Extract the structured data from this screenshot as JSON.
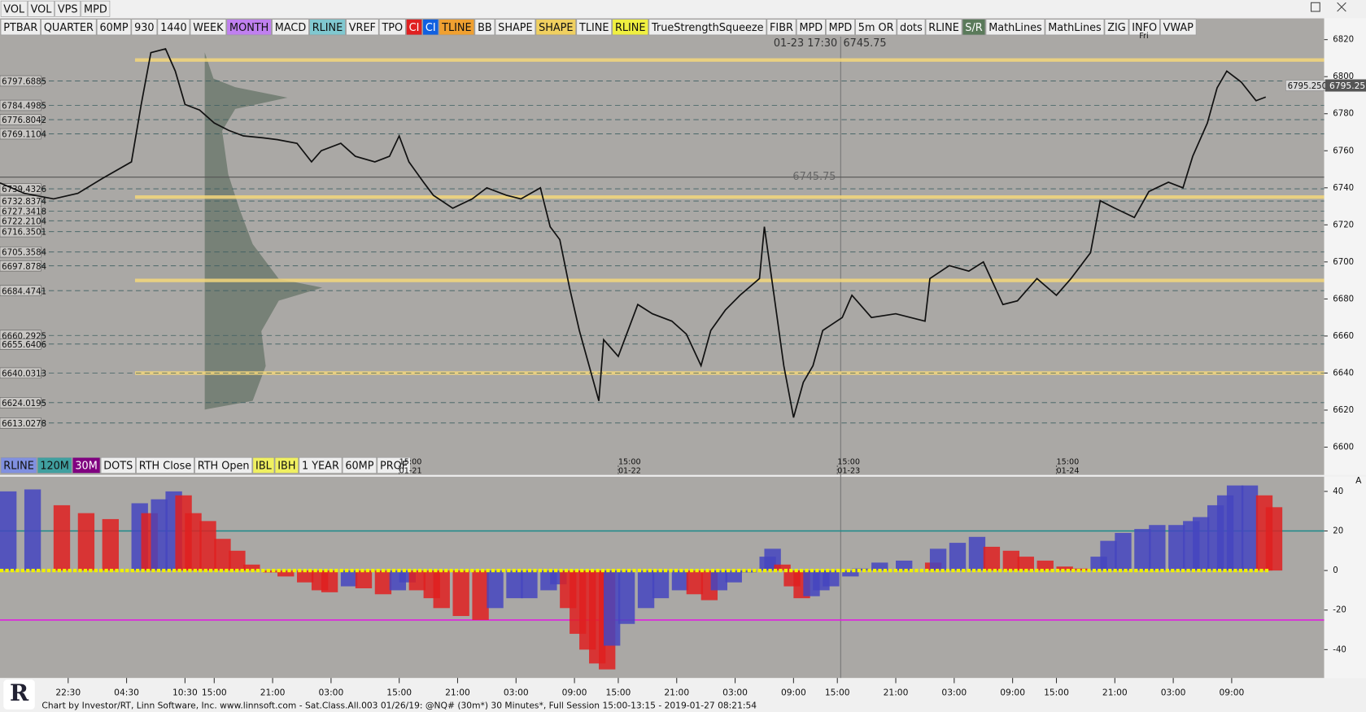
{
  "top_buttons": [
    "VOL",
    "VOL",
    "VPS",
    "MPD"
  ],
  "toolbar": [
    {
      "label": "PTBAR",
      "color": "#eeeeee"
    },
    {
      "label": "QUARTER",
      "color": "#eeeeee"
    },
    {
      "label": "60MP",
      "color": "#eeeeee"
    },
    {
      "label": "930",
      "color": "#eeeeee"
    },
    {
      "label": "1440",
      "color": "#eeeeee"
    },
    {
      "label": "WEEK",
      "color": "#eeeeee"
    },
    {
      "label": "MONTH",
      "color": "#c080f0"
    },
    {
      "label": "MACD",
      "color": "#eeeeee"
    },
    {
      "label": "RLINE",
      "color": "#80c8d0"
    },
    {
      "label": "VREF",
      "color": "#eeeeee"
    },
    {
      "label": "TPO",
      "color": "#eeeeee"
    },
    {
      "label": "CI",
      "color": "#e02020"
    },
    {
      "label": "CI",
      "color": "#1060e0"
    },
    {
      "label": "TLINE",
      "color": "#f0a030"
    },
    {
      "label": "BB",
      "color": "#eeeeee"
    },
    {
      "label": "SHAPE",
      "color": "#eeeeee"
    },
    {
      "label": "SHAPE",
      "color": "#f0d060"
    },
    {
      "label": "TLINE",
      "color": "#eeeeee"
    },
    {
      "label": "RLINE",
      "color": "#f0f040"
    },
    {
      "label": "TrueStrengthSqueeze",
      "color": "#eeeeee"
    },
    {
      "label": "FIBR",
      "color": "#eeeeee"
    },
    {
      "label": "MPD",
      "color": "#eeeeee"
    },
    {
      "label": "MPD",
      "color": "#eeeeee"
    },
    {
      "label": "5m OR",
      "color": "#eeeeee"
    },
    {
      "label": "dots",
      "color": "#eeeeee"
    },
    {
      "label": "RLINE",
      "color": "#eeeeee"
    },
    {
      "label": "S/R",
      "color": "#5a7a5a"
    },
    {
      "label": "MathLines",
      "color": "#eeeeee"
    },
    {
      "label": "MathLines",
      "color": "#eeeeee"
    },
    {
      "label": "ZIG",
      "color": "#eeeeee"
    },
    {
      "label": "INFO",
      "color": "#eeeeee"
    },
    {
      "label": "VWAP",
      "color": "#eeeeee"
    }
  ],
  "lower_toolbar": [
    {
      "label": "RLINE",
      "color": "#8090e0"
    },
    {
      "label": "120M",
      "color": "#40a0a0"
    },
    {
      "label": "30M",
      "color": "#800080"
    },
    {
      "label": "DOTS",
      "color": "#eeeeee"
    },
    {
      "label": "RTH Close",
      "color": "#eeeeee"
    },
    {
      "label": "RTH Open",
      "color": "#eeeeee"
    },
    {
      "label": "IBL",
      "color": "#f0f060"
    },
    {
      "label": "IBH",
      "color": "#f0f060"
    },
    {
      "label": "1 YEAR",
      "color": "#eeeeee"
    },
    {
      "label": "60MP",
      "color": "#eeeeee"
    },
    {
      "label": "PROF",
      "color": "#eeeeee"
    }
  ],
  "logo": "R",
  "footer": "Chart by Investor/RT, Linn Software, Inc. www.linnsoft.com - Sat.Class.All.003   01/26/19: @NQ# (30m*) 30 Minutes*, Full Session 15:00-13:15 - 2019-01-27 08:21:54",
  "chart_data": [
    {
      "type": "line",
      "color": "#111111",
      "x": [
        0,
        5,
        11,
        16,
        21,
        27,
        29,
        31,
        34,
        36,
        38,
        41,
        44,
        47,
        50,
        54,
        57,
        61,
        64,
        66,
        70,
        73,
        77,
        80,
        82,
        84,
        87,
        89,
        93,
        97,
        100,
        104,
        107,
        111,
        113,
        115,
        117,
        119,
        121,
        123,
        124,
        127,
        131,
        134,
        138,
        141,
        144,
        146,
        149,
        152,
        156,
        157,
        159,
        161,
        163,
        165,
        167,
        169,
        173,
        175,
        179,
        184,
        190,
        191,
        195,
        199,
        202,
        206,
        209,
        213,
        217,
        220,
        224,
        226,
        229,
        233,
        236,
        240,
        243,
        245,
        248,
        250,
        252,
        255,
        258,
        260
      ],
      "values": [
        6742.6,
        6737,
        6734,
        6737,
        6745,
        6754,
        6785,
        6813,
        6815,
        6803,
        6785,
        6782,
        6775,
        6771,
        6768,
        6767,
        6766,
        6764,
        6754,
        6760,
        6764,
        6757,
        6754,
        6757,
        6768,
        6754,
        6743,
        6736,
        6729,
        6734,
        6740,
        6736,
        6734,
        6740,
        6719,
        6712,
        6686,
        6663,
        6644,
        6625,
        6658,
        6649,
        6677,
        6672,
        6668,
        6661,
        6644,
        6663,
        6674,
        6682,
        6691,
        6719,
        6682,
        6644,
        6616,
        6635,
        6644,
        6663,
        6670,
        6682,
        6670,
        6672,
        6668,
        6691,
        6698,
        6695,
        6700,
        6677,
        6679,
        6691,
        6682,
        6691,
        6705,
        6733,
        6729,
        6724,
        6738,
        6743,
        6740,
        6757,
        6775,
        6794,
        6803,
        6797,
        6787,
        6789
      ],
      "xlim": [
        0,
        272
      ],
      "ylim": [
        6585,
        6831
      ],
      "yticks": [
        6600,
        6620,
        6640,
        6660,
        6680,
        6700,
        6720,
        6740,
        6760,
        6780,
        6800,
        6820
      ],
      "levels": [
        6797.6885,
        6784.4985,
        6776.8042,
        6769.1104,
        6739.4326,
        6732.8374,
        6727.3418,
        6722.2104,
        6716.3501,
        6705.3584,
        6697.8784,
        6684.4741,
        6660.2925,
        6655.6406,
        6640.0313,
        6624.0195,
        6613.0278
      ],
      "bands": [
        6809,
        6735,
        6690,
        6640
      ],
      "band_color": "#f5d77a",
      "session_ticks": [
        {
          "value": 82,
          "time": "15:00",
          "label": "01-21"
        },
        {
          "value": 127,
          "time": "15:00",
          "label": "01-22"
        },
        {
          "value": 172,
          "time": "15:00",
          "label": "01-23"
        },
        {
          "value": 217,
          "time": "15:00",
          "label": "01-24"
        },
        {
          "value": 234,
          "label": "Fri"
        }
      ],
      "crosshair": {
        "time": "01-23 17:30",
        "value": 6745.75
      },
      "last_price": {
        "value": 6795.25,
        "label": "6795.2500"
      }
    },
    {
      "type": "bar",
      "rising_color": "#4545c0",
      "falling_color": "#e02020",
      "x": [
        0,
        5,
        11,
        16,
        21,
        27,
        29,
        31,
        34,
        36,
        38,
        41,
        44,
        47,
        50,
        54,
        57,
        61,
        64,
        66,
        70,
        73,
        77,
        80,
        82,
        84,
        87,
        89,
        93,
        97,
        100,
        104,
        107,
        111,
        113,
        115,
        117,
        119,
        121,
        123,
        124,
        127,
        131,
        134,
        138,
        141,
        144,
        146,
        149,
        152,
        156,
        157,
        159,
        161,
        163,
        165,
        167,
        169,
        173,
        175,
        179,
        184,
        190,
        191,
        195,
        199,
        202,
        206,
        209,
        213,
        217,
        220,
        224,
        226,
        229,
        233,
        236,
        240,
        243,
        245,
        248,
        250,
        252,
        255,
        258,
        260
      ],
      "values": [
        40,
        41,
        33,
        29,
        26,
        34,
        29,
        36,
        40,
        38,
        29,
        25,
        16,
        10,
        3,
        -1,
        -3,
        -6,
        -10,
        -11,
        -8,
        -9,
        -12,
        -10,
        -6,
        -10,
        -14,
        -19,
        -23,
        -25,
        -19,
        -14,
        -14,
        -10,
        -7,
        -19,
        -32,
        -40,
        -47,
        -50,
        -38,
        -27,
        -19,
        -14,
        -10,
        -12,
        -15,
        -10,
        -6,
        -1,
        7,
        11,
        3,
        -8,
        -14,
        -13,
        -10,
        -8,
        -3,
        1,
        4,
        5,
        4,
        11,
        14,
        17,
        12,
        10,
        7,
        5,
        2,
        1,
        7,
        15,
        19,
        21,
        23,
        23,
        25,
        27,
        33,
        38,
        43,
        43,
        38,
        32
      ],
      "xlim": [
        0,
        272
      ],
      "ylim": [
        -53,
        47
      ],
      "yticks": [
        -40,
        -20,
        0,
        20,
        40
      ],
      "reference_lines": [
        {
          "value": 20,
          "color": "#1a8a8a"
        },
        {
          "value": -25,
          "color": "#e020e0"
        }
      ],
      "panel_label": "A",
      "xticks": [
        {
          "value": 14,
          "label": "22:30"
        },
        {
          "value": 26,
          "label": "04:30"
        },
        {
          "value": 38,
          "label": "10:30"
        },
        {
          "value": 44,
          "label": "15:00"
        },
        {
          "value": 56,
          "label": "21:00"
        },
        {
          "value": 68,
          "label": "03:00"
        },
        {
          "value": 82,
          "label": "15:00"
        },
        {
          "value": 94,
          "label": "21:00"
        },
        {
          "value": 106,
          "label": "03:00"
        },
        {
          "value": 118,
          "label": "09:00"
        },
        {
          "value": 127,
          "label": "15:00"
        },
        {
          "value": 139,
          "label": "21:00"
        },
        {
          "value": 151,
          "label": "03:00"
        },
        {
          "value": 163,
          "label": "09:00"
        },
        {
          "value": 172,
          "label": "15:00"
        },
        {
          "value": 184,
          "label": "21:00"
        },
        {
          "value": 196,
          "label": "03:00"
        },
        {
          "value": 208,
          "label": "09:00"
        },
        {
          "value": 217,
          "label": "15:00"
        },
        {
          "value": 229,
          "label": "21:00"
        },
        {
          "value": 241,
          "label": "03:00"
        },
        {
          "value": 253,
          "label": "09:00"
        }
      ]
    }
  ]
}
